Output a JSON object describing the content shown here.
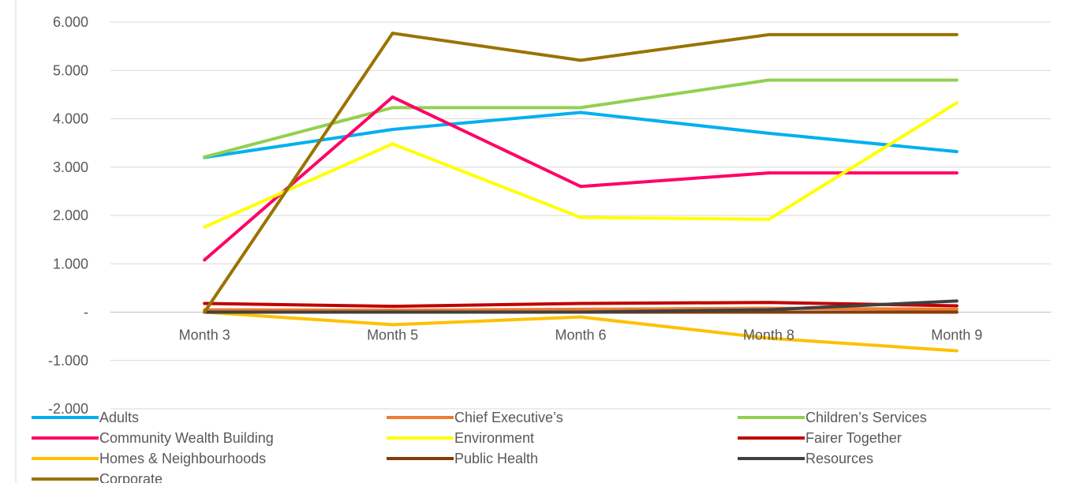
{
  "chart_data": {
    "type": "line",
    "categories": [
      "Month 3",
      "Month 5",
      "Month 6",
      "Month 8",
      "Month 9"
    ],
    "ylim": [
      -2000,
      6000
    ],
    "y_tick_labels": [
      "6.000",
      "5.000",
      "4.000",
      "3.000",
      "2.000",
      "1.000",
      "-",
      "-1.000",
      "-2.000"
    ],
    "y_tick_values": [
      6000,
      5000,
      4000,
      3000,
      2000,
      1000,
      0,
      -1000,
      -2000
    ],
    "grid": true,
    "legend_position": "bottom",
    "series": [
      {
        "name": "Adults",
        "color": "#00B0F0",
        "values": [
          3200,
          3780,
          4130,
          3700,
          3320
        ]
      },
      {
        "name": "Chief Executive’s",
        "color": "#ED7D31",
        "values": [
          50,
          40,
          60,
          80,
          60
        ]
      },
      {
        "name": "Children’s Services",
        "color": "#92D050",
        "values": [
          3210,
          4230,
          4230,
          4800,
          4800
        ]
      },
      {
        "name": "Community Wealth Building",
        "color": "#FF0066",
        "values": [
          1080,
          4450,
          2600,
          2880,
          2880
        ]
      },
      {
        "name": "Environment",
        "color": "#FFFF00",
        "values": [
          1760,
          3480,
          1960,
          1920,
          4330
        ]
      },
      {
        "name": "Fairer Together",
        "color": "#C00000",
        "values": [
          180,
          120,
          180,
          200,
          130
        ]
      },
      {
        "name": "Homes & Neighbourhoods",
        "color": "#FFC000",
        "values": [
          0,
          -260,
          -100,
          -540,
          -800
        ]
      },
      {
        "name": "Public Health",
        "color": "#843C0C",
        "values": [
          0,
          0,
          0,
          0,
          0
        ]
      },
      {
        "name": "Resources",
        "color": "#404040",
        "values": [
          0,
          0,
          0,
          50,
          230
        ]
      },
      {
        "name": "Corporate",
        "color": "#997300",
        "values": [
          0,
          5770,
          5210,
          5740,
          5740
        ]
      }
    ]
  }
}
